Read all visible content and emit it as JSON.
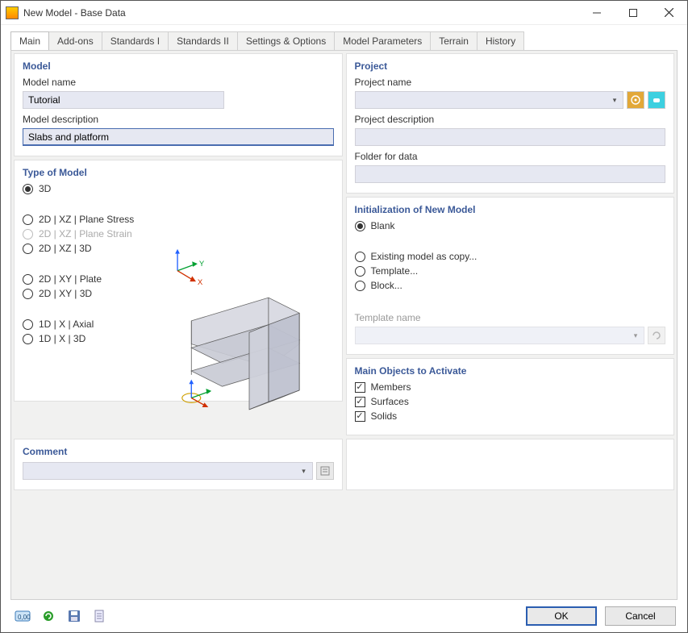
{
  "window": {
    "title": "New Model - Base Data"
  },
  "tabs": {
    "items": [
      "Main",
      "Add-ons",
      "Standards I",
      "Standards II",
      "Settings & Options",
      "Model Parameters",
      "Terrain",
      "History"
    ],
    "active_index": 0
  },
  "model_panel": {
    "title": "Model",
    "name_label": "Model name",
    "name_value": "Tutorial",
    "desc_label": "Model description",
    "desc_value": "Slabs and platform"
  },
  "project_panel": {
    "title": "Project",
    "name_label": "Project name",
    "name_value": "",
    "desc_label": "Project description",
    "desc_value": "",
    "folder_label": "Folder for data",
    "folder_value": ""
  },
  "type_panel": {
    "title": "Type of Model",
    "options": [
      {
        "label": "3D",
        "checked": true,
        "disabled": false
      },
      {
        "label": "2D | XZ | Plane Stress",
        "checked": false,
        "disabled": false,
        "gap_before": true
      },
      {
        "label": "2D | XZ | Plane Strain",
        "checked": false,
        "disabled": true
      },
      {
        "label": "2D | XZ | 3D",
        "checked": false,
        "disabled": false
      },
      {
        "label": "2D | XY | Plate",
        "checked": false,
        "disabled": false,
        "gap_before": true
      },
      {
        "label": "2D | XY | 3D",
        "checked": false,
        "disabled": false
      },
      {
        "label": "1D | X | Axial",
        "checked": false,
        "disabled": false,
        "gap_before": true
      },
      {
        "label": "1D | X | 3D",
        "checked": false,
        "disabled": false
      }
    ]
  },
  "init_panel": {
    "title": "Initialization of New Model",
    "options": [
      {
        "label": "Blank",
        "checked": true
      },
      {
        "label": "Existing model as copy...",
        "checked": false,
        "gap_before": true
      },
      {
        "label": "Template...",
        "checked": false
      },
      {
        "label": "Block...",
        "checked": false
      }
    ],
    "template_label": "Template name"
  },
  "objects_panel": {
    "title": "Main Objects to Activate",
    "options": [
      {
        "label": "Members",
        "checked": true
      },
      {
        "label": "Surfaces",
        "checked": true
      },
      {
        "label": "Solids",
        "checked": true
      }
    ]
  },
  "comment_panel": {
    "title": "Comment"
  },
  "buttons": {
    "ok": "OK",
    "cancel": "Cancel"
  },
  "colors": {
    "accent": "#3b5998",
    "input_bg": "#e6e8f2",
    "panel_border": "#e0e0e0"
  }
}
